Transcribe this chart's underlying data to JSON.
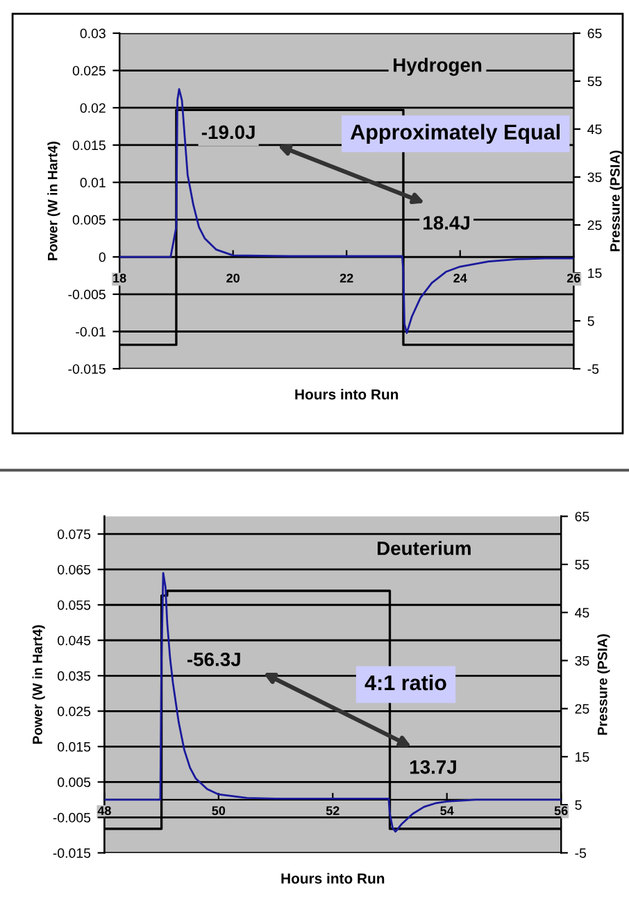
{
  "chart_data": [
    {
      "type": "line",
      "title": "Hydrogen",
      "xlabel": "Hours into Run",
      "ylabel": "Power (W in Hart4)",
      "y2label": "Pressure (PSIA)",
      "grid": "y",
      "xlim": [
        18,
        26
      ],
      "xticks": [
        18,
        20,
        22,
        24,
        26
      ],
      "ylim": [
        -0.015,
        0.03
      ],
      "yticks": [
        -0.015,
        -0.01,
        -0.005,
        0,
        0.005,
        0.01,
        0.015,
        0.02,
        0.025,
        0.03
      ],
      "y2lim": [
        -5,
        65
      ],
      "y2ticks": [
        -5,
        5,
        15,
        25,
        35,
        45,
        55,
        65
      ],
      "series": [
        {
          "color": "#1a1a9c",
          "x": [
            18.0,
            18.9,
            19.0,
            19.02,
            19.05,
            19.1,
            19.15,
            19.2,
            19.3,
            19.4,
            19.5,
            19.7,
            20.0,
            21.0,
            22.0,
            22.98,
            23.0,
            23.02,
            23.06,
            23.15,
            23.3,
            23.5,
            23.75,
            24.0,
            24.5,
            25.0,
            25.5,
            26.0
          ],
          "values": [
            0,
            0,
            0.004,
            0.021,
            0.0225,
            0.021,
            0.016,
            0.011,
            0.007,
            0.004,
            0.0025,
            0.001,
            0.0002,
            0.0001,
            0.0001,
            0.0001,
            -0.002,
            -0.009,
            -0.0102,
            -0.008,
            -0.0055,
            -0.0035,
            -0.002,
            -0.0013,
            -0.0006,
            -0.0003,
            -0.0002,
            -0.0002
          ]
        },
        {
          "color": "#000000",
          "axis": "y2",
          "x": [
            18,
            19,
            19,
            23,
            23,
            26
          ],
          "values": [
            0,
            0,
            49,
            49,
            0,
            0
          ]
        }
      ],
      "annotations": [
        "-19.0J",
        "18.4J",
        "Approximately Equal"
      ]
    },
    {
      "type": "line",
      "title": "Deuterium",
      "xlabel": "Hours into Run",
      "ylabel": "Power (W in Hart4)",
      "y2label": "Pressure (PSIA)",
      "grid": "y",
      "xlim": [
        48,
        56
      ],
      "xticks": [
        48,
        50,
        52,
        54,
        56
      ],
      "ylim": [
        -0.015,
        0.08
      ],
      "yticks": [
        -0.015,
        -0.005,
        0.005,
        0.015,
        0.025,
        0.035,
        0.045,
        0.055,
        0.065,
        0.075
      ],
      "y2lim": [
        -5,
        65
      ],
      "y2ticks": [
        -5,
        5,
        15,
        25,
        35,
        45,
        55,
        65
      ],
      "series": [
        {
          "color": "#1a1a9c",
          "x": [
            48.0,
            48.98,
            49.0,
            49.03,
            49.07,
            49.1,
            49.15,
            49.2,
            49.3,
            49.4,
            49.5,
            49.6,
            49.8,
            50.0,
            50.5,
            51.0,
            52.0,
            52.98,
            53.0,
            53.05,
            53.1,
            53.2,
            53.4,
            53.6,
            53.8,
            54.0,
            54.5,
            55.0,
            56.0
          ],
          "values": [
            0,
            0,
            0.04,
            0.064,
            0.06,
            0.05,
            0.04,
            0.033,
            0.022,
            0.014,
            0.009,
            0.006,
            0.003,
            0.0015,
            0.0005,
            0.0003,
            0.0003,
            0.0003,
            -0.004,
            -0.008,
            -0.009,
            -0.007,
            -0.004,
            -0.002,
            -0.001,
            -0.0005,
            0,
            0,
            0
          ]
        },
        {
          "color": "#000000",
          "axis": "y2",
          "x": [
            48,
            49,
            49,
            49.1,
            49.1,
            53,
            53,
            56
          ],
          "values": [
            0,
            0,
            48.5,
            48.5,
            49.5,
            49.5,
            0,
            0
          ]
        }
      ],
      "annotations": [
        "-56.3J",
        "13.7J",
        "4:1 ratio"
      ]
    }
  ]
}
